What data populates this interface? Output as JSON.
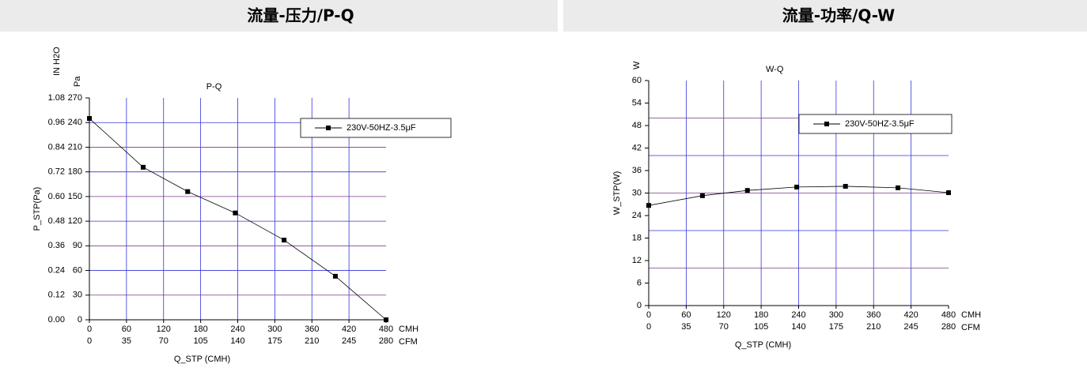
{
  "chart_data": [
    {
      "type": "line",
      "panel_title": "流量-压力/P-Q",
      "title": "P-Q",
      "y_label": "P_STP(Pa)",
      "y_unit": "Pa",
      "y2_unit": "IN H2O",
      "x_label": "Q_STP (CMH)",
      "x_unit": "CMH",
      "x2_unit": "CFM",
      "x": [
        0,
        87,
        159,
        236,
        315,
        398,
        480
      ],
      "series": [
        {
          "name": "230V-50HZ-3.5μF",
          "color": "#000000",
          "values": [
            245,
            185.6,
            156,
            130,
            97,
            53,
            0
          ]
        }
      ],
      "xlim": [
        0,
        480
      ],
      "xticks": [
        0,
        60,
        120,
        180,
        240,
        300,
        360,
        420,
        480
      ],
      "x2lim": [
        0,
        280
      ],
      "x2ticks": [
        0,
        35,
        70,
        105,
        140,
        175,
        210,
        245,
        280
      ],
      "ylim": [
        0,
        270
      ],
      "yticks": [
        0,
        30,
        60,
        90,
        120,
        150,
        180,
        210,
        240,
        270
      ],
      "y2lim": [
        0,
        1.08
      ],
      "y2ticks": [
        {
          "value": 0,
          "label": "0.00"
        },
        0.12,
        0.24,
        0.36,
        0.48,
        {
          "value": 0.6,
          "label": "0.60"
        },
        0.72,
        0.84,
        0.96,
        1.08
      ],
      "ygrid": [
        30,
        60,
        90,
        120,
        150,
        180,
        210,
        240
      ],
      "grid": true,
      "legend": "upper right"
    },
    {
      "type": "line",
      "panel_title": "流量-功率/Q-W",
      "title": "W-Q",
      "y_label": "W_STP(W)",
      "y_unit": "W",
      "x_label": "Q_STP (CMH)",
      "x_unit": "CMH",
      "x2_unit": "CFM",
      "x": [
        0,
        86,
        158,
        237,
        315,
        399,
        480
      ],
      "series": [
        {
          "name": "230V-50HZ-3.5μF",
          "color": "#000000",
          "values": [
            26.7,
            29.3,
            30.7,
            31.6,
            31.8,
            31.4,
            30.1
          ]
        }
      ],
      "xlim": [
        0,
        480
      ],
      "xticks": [
        0,
        60,
        120,
        180,
        240,
        300,
        360,
        420,
        480
      ],
      "x2lim": [
        0,
        280
      ],
      "x2ticks": [
        0,
        35,
        70,
        105,
        140,
        175,
        210,
        245,
        280
      ],
      "ylim": [
        0,
        60
      ],
      "yticks": [
        0,
        6,
        12,
        18,
        24,
        30,
        36,
        42,
        48,
        54,
        60
      ],
      "ygrid": [
        10,
        20,
        30,
        40,
        50
      ],
      "grid": true,
      "legend": "upper right"
    }
  ]
}
